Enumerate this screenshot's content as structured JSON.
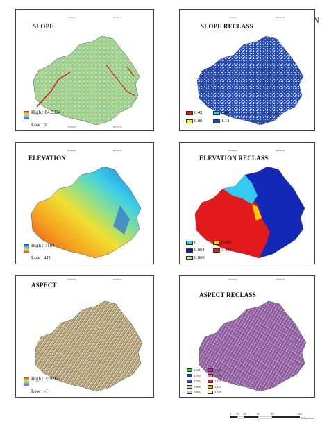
{
  "north_label": "N",
  "panels": {
    "slope": {
      "title": "SLOPE",
      "legend_high": "High : 84.5334",
      "legend_low": "Low : 0"
    },
    "slope_reclass": {
      "title": "SLOPE RECLASS",
      "classes": [
        {
          "label": "0.42",
          "color": "#e31a1c"
        },
        {
          "label": "0.80",
          "color": "#33ccdd"
        },
        {
          "label": "0.80",
          "color": "#ffee00"
        },
        {
          "label": "1.13",
          "color": "#1f3fcc"
        }
      ]
    },
    "elevation": {
      "title": "ELEVATION",
      "legend_high": "High : 7184",
      "legend_low": "Low : 411"
    },
    "elevation_reclass": {
      "title": "ELEVATION RECLASS",
      "classes": [
        {
          "label": "0",
          "color": "#33ccee"
        },
        {
          "label": "0.603",
          "color": "#ffcc00"
        },
        {
          "label": "0.004",
          "color": "#0a1fa8"
        },
        {
          "label": "3.402",
          "color": "#e31a1c"
        },
        {
          "label": "0.065",
          "color": "#aaf0a0"
        }
      ]
    },
    "aspect": {
      "title": "ASPECT",
      "legend_high": "High : 359.963",
      "legend_low": "Low : -1"
    },
    "aspect_reclass": {
      "title": "ASPECT RECLASS",
      "classes": [
        {
          "label": "0.631",
          "color": "#22cc22"
        },
        {
          "label": "1.038",
          "color": "#cc22aa"
        },
        {
          "label": "0.783",
          "color": "#1a3acc"
        },
        {
          "label": "1.118",
          "color": "#ff7799"
        },
        {
          "label": "0.756",
          "color": "#2255ee"
        },
        {
          "label": "1.145",
          "color": "#ee2222"
        },
        {
          "label": "0.888",
          "color": "#e8c8c8"
        },
        {
          "label": "1.157",
          "color": "#ffaa00"
        },
        {
          "label": "0.965",
          "color": "#99ddee"
        },
        {
          "label": "2.578",
          "color": "#ffffaa"
        }
      ]
    }
  },
  "coords": {
    "top": "78°0'0\"E",
    "top2": "80°0'0\"E",
    "side": "30°0'0\"N",
    "side2": "28°0'0\"N"
  },
  "scale": {
    "ticks": [
      "0",
      "15",
      "30",
      "60",
      "90",
      "120"
    ],
    "unit": "Kilometers"
  }
}
